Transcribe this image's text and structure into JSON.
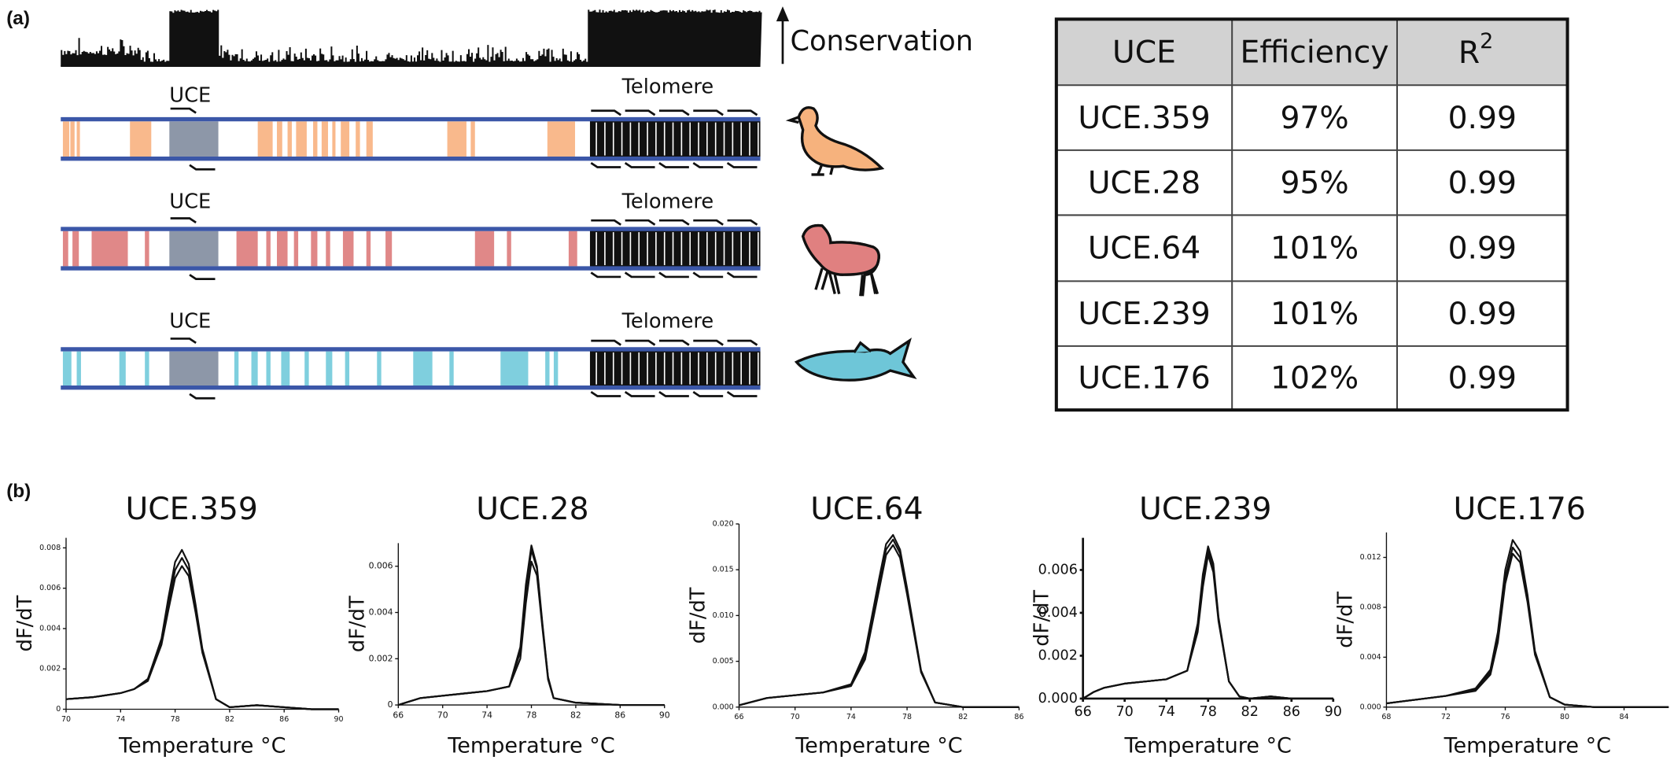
{
  "panel_a": {
    "label": "(a)",
    "conservation_label": "Conservation",
    "tracks": [
      {
        "uce_label": "UCE",
        "telomere_label": "Telomere"
      },
      {
        "uce_label": "UCE",
        "telomere_label": "Telomere"
      },
      {
        "uce_label": "UCE",
        "telomere_label": "Telomere"
      }
    ],
    "table": {
      "header": [
        "UCE",
        "Efficiency",
        {
          "text": "R",
          "superscript": "2"
        }
      ],
      "rows": [
        [
          "UCE.359",
          "97%",
          "0.99"
        ],
        [
          "UCE.28",
          "95%",
          "0.99"
        ],
        [
          "UCE.64",
          "101%",
          "0.99"
        ],
        [
          "UCE.239",
          "101%",
          "0.99"
        ],
        [
          "UCE.176",
          "102%",
          "0.99"
        ]
      ]
    }
  },
  "panel_b": {
    "label": "(b)"
  },
  "chart_data": [
    {
      "type": "line",
      "title": "UCE.359",
      "x_label": "Temperature °C",
      "y_label": "dF/dT",
      "x": [
        70,
        72,
        74,
        75,
        76,
        77,
        77.5,
        78,
        78.5,
        79,
        79.5,
        80,
        81,
        82,
        84,
        86,
        88,
        90
      ],
      "series": [
        {
          "color": "#111111",
          "values": [
            0.0005,
            0.0006,
            0.0008,
            0.001,
            0.0015,
            0.0035,
            0.0055,
            0.0073,
            0.0079,
            0.0072,
            0.0052,
            0.003,
            0.0005,
            0.0001,
            0.0002,
            0.0001,
            0,
            0
          ]
        },
        {
          "color": "#111111",
          "values": [
            0.0005,
            0.0006,
            0.0008,
            0.001,
            0.0015,
            0.0034,
            0.0052,
            0.0069,
            0.0075,
            0.0069,
            0.005,
            0.0029,
            0.0005,
            0.0001,
            0.0002,
            0.0001,
            0,
            0
          ]
        },
        {
          "color": "#111111",
          "values": [
            0.0005,
            0.0006,
            0.0008,
            0.001,
            0.0014,
            0.0032,
            0.0049,
            0.0065,
            0.0071,
            0.0066,
            0.0048,
            0.0028,
            0.0005,
            0.0001,
            0.0002,
            0.0001,
            0,
            0
          ]
        }
      ],
      "xlim": [
        70,
        90
      ],
      "xticks": [
        70,
        74,
        78,
        82,
        86,
        90
      ],
      "ylim": [
        0,
        0.0085
      ],
      "yticks": [
        0,
        0.002,
        0.004,
        0.006,
        0.008
      ]
    },
    {
      "type": "line",
      "title": "UCE.28",
      "x_label": "Temperature °C",
      "y_label": "dF/dT",
      "x": [
        66,
        68,
        70,
        72,
        74,
        76,
        77,
        77.5,
        78,
        78.5,
        79,
        79.5,
        80,
        82,
        86,
        90
      ],
      "series": [
        {
          "color": "#111111",
          "values": [
            0,
            0.0003,
            0.0004,
            0.0005,
            0.0006,
            0.0008,
            0.0025,
            0.0052,
            0.0069,
            0.006,
            0.0035,
            0.0012,
            0.0003,
            0.0001,
            0,
            0
          ]
        },
        {
          "color": "#111111",
          "values": [
            0,
            0.0003,
            0.0004,
            0.0005,
            0.0006,
            0.0008,
            0.0023,
            0.0049,
            0.0067,
            0.0059,
            0.0034,
            0.0012,
            0.0003,
            0.0001,
            0,
            0
          ]
        },
        {
          "color": "#111111",
          "values": [
            0,
            0.0003,
            0.0004,
            0.0005,
            0.0006,
            0.0008,
            0.002,
            0.0044,
            0.0062,
            0.0056,
            0.0033,
            0.0011,
            0.0003,
            0.0001,
            0,
            0
          ]
        }
      ],
      "xlim": [
        66,
        90
      ],
      "xticks": [
        66,
        70,
        74,
        78,
        82,
        86,
        90
      ],
      "ylim": [
        0,
        0.007
      ],
      "yticks": [
        0,
        0.002,
        0.004,
        0.006
      ]
    },
    {
      "type": "line",
      "title": "UCE.64",
      "x_label": "Temperature °C",
      "y_label": "dF/dT",
      "x": [
        66,
        68,
        70,
        72,
        74,
        75,
        76,
        76.5,
        77,
        77.5,
        78,
        79,
        80,
        82,
        86
      ],
      "series": [
        {
          "color": "#111111",
          "values": [
            0.0002,
            0.001,
            0.0013,
            0.0016,
            0.0025,
            0.006,
            0.014,
            0.0178,
            0.0188,
            0.0172,
            0.013,
            0.004,
            0.0005,
            0,
            0
          ]
        },
        {
          "color": "#111111",
          "values": [
            0.0002,
            0.001,
            0.0013,
            0.0016,
            0.0024,
            0.0056,
            0.0134,
            0.0172,
            0.0183,
            0.0168,
            0.0127,
            0.0039,
            0.0005,
            0,
            0
          ]
        },
        {
          "color": "#111111",
          "values": [
            0.0002,
            0.001,
            0.0013,
            0.0016,
            0.0023,
            0.0052,
            0.0128,
            0.0166,
            0.0177,
            0.0163,
            0.0123,
            0.0038,
            0.0005,
            0,
            0
          ]
        }
      ],
      "xlim": [
        66,
        86
      ],
      "xticks": [
        66,
        70,
        74,
        78,
        82,
        86
      ],
      "ylim": [
        0,
        0.02
      ],
      "yticks": [
        {
          "value": 0,
          "label": "0.000"
        },
        0.005,
        {
          "value": 0.01,
          "label": "0.010"
        },
        0.015,
        {
          "value": 0.02,
          "label": "0.020"
        }
      ]
    },
    {
      "type": "line",
      "title": "UCE.239",
      "x_label": "Temperature °C",
      "y_label": "dF/dT",
      "x": [
        66,
        67,
        68,
        70,
        72,
        74,
        76,
        77,
        77.5,
        78,
        78.5,
        79,
        80,
        81,
        82,
        84,
        86,
        90
      ],
      "series": [
        {
          "color": "#111111",
          "values": [
            0,
            0.0003,
            0.0005,
            0.0007,
            0.0008,
            0.0009,
            0.0013,
            0.0035,
            0.0058,
            0.0071,
            0.0063,
            0.0038,
            0.0008,
            0.0001,
            0,
            0.0001,
            0,
            0
          ]
        },
        {
          "color": "#111111",
          "values": [
            0,
            0.0003,
            0.0005,
            0.0007,
            0.0008,
            0.0009,
            0.0013,
            0.0033,
            0.0055,
            0.0069,
            0.0061,
            0.0037,
            0.0008,
            0.0001,
            0,
            0.0001,
            0,
            0
          ]
        },
        {
          "color": "#111111",
          "values": [
            0,
            0.0003,
            0.0005,
            0.0007,
            0.0008,
            0.0009,
            0.0013,
            0.0031,
            0.0052,
            0.0067,
            0.0059,
            0.0036,
            0.0008,
            0.0001,
            0,
            0.0001,
            0,
            0
          ]
        }
      ],
      "xlim": [
        66,
        90
      ],
      "xticks": [
        66,
        70,
        74,
        78,
        82,
        86,
        90
      ],
      "ylim": [
        0,
        0.0075
      ],
      "yticks": [
        {
          "value": 0,
          "label": "0.000"
        },
        0.002,
        0.004,
        0.006
      ]
    },
    {
      "type": "line",
      "title": "UCE.176",
      "x_label": "Temperature °C",
      "y_label": "dF/dT",
      "x": [
        68,
        70,
        72,
        74,
        75,
        75.5,
        76,
        76.5,
        77,
        77.5,
        78,
        79,
        80,
        82,
        84,
        87
      ],
      "series": [
        {
          "color": "#111111",
          "values": [
            0.0003,
            0.0006,
            0.0009,
            0.0015,
            0.003,
            0.006,
            0.011,
            0.0134,
            0.0125,
            0.009,
            0.0045,
            0.0008,
            0.0002,
            0,
            0,
            0
          ]
        },
        {
          "color": "#111111",
          "values": [
            0.0003,
            0.0006,
            0.0009,
            0.0014,
            0.0028,
            0.0056,
            0.0104,
            0.0128,
            0.012,
            0.0087,
            0.0044,
            0.0008,
            0.0002,
            0,
            0,
            0
          ]
        },
        {
          "color": "#111111",
          "values": [
            0.0003,
            0.0006,
            0.0009,
            0.0013,
            0.0026,
            0.0052,
            0.0099,
            0.0123,
            0.0116,
            0.0084,
            0.0042,
            0.0008,
            0.0002,
            0,
            0,
            0
          ]
        }
      ],
      "xlim": [
        68,
        87
      ],
      "xticks": [
        68,
        72,
        76,
        80,
        84
      ],
      "ylim": [
        0,
        0.014
      ],
      "yticks": [
        {
          "value": 0,
          "label": "0.000"
        },
        0.004,
        0.008,
        0.012
      ]
    }
  ]
}
